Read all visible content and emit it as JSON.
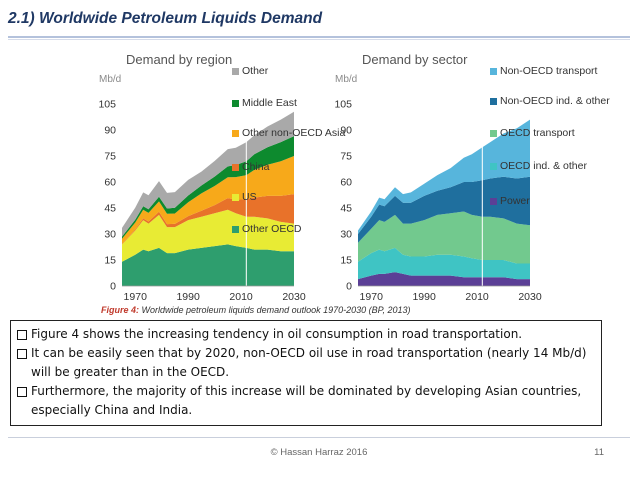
{
  "slide": {
    "title": "2.1) Worldwide Petroleum Liquids Demand",
    "figure_label": "Figure 4:",
    "figure_caption": "Worldwide petroleum liquids demand outlook 1970-2030 (BP, 2013)",
    "bullets": [
      "Figure 4 shows the increasing tendency in oil consumption in road transportation.",
      "It can be easily seen that by 2020, non-OECD oil use in road transportation (nearly 14 Mb/d) will be greater than in the OECD.",
      "Furthermore, the majority of this increase will be dominated by developing Asian countries, especially China and India."
    ],
    "footer": "©  Hassan Harraz  2016",
    "page_number": "11"
  },
  "chart_data": [
    {
      "type": "area",
      "stacked": true,
      "title": "Demand by region",
      "ylabel": "Mb/d",
      "ylim": [
        0,
        105
      ],
      "yticks": [
        0,
        15,
        30,
        45,
        60,
        75,
        90,
        105
      ],
      "xticks": [
        1970,
        1990,
        2010,
        2030
      ],
      "xlim": [
        1965,
        2030
      ],
      "divider_year": 2012,
      "x": [
        1965,
        1970,
        1973,
        1975,
        1979,
        1982,
        1985,
        1990,
        1995,
        2000,
        2005,
        2008,
        2012,
        2015,
        2020,
        2025,
        2030
      ],
      "series": [
        {
          "name": "Other OECD",
          "color": "#2e9e6e",
          "values": [
            14,
            18,
            21,
            20,
            22,
            19,
            19,
            21,
            22,
            23,
            24,
            23,
            22,
            21,
            21,
            20,
            20
          ]
        },
        {
          "name": "US",
          "color": "#e8eb34",
          "values": [
            10,
            14,
            17,
            16,
            19,
            15,
            15,
            17,
            18,
            19,
            20,
            19,
            18,
            19,
            18,
            17,
            16
          ]
        },
        {
          "name": "China",
          "color": "#e8722a",
          "values": [
            0.3,
            0.6,
            1,
            1.2,
            1.8,
            1.7,
            1.8,
            2.3,
            3.4,
            4.7,
            6.7,
            7.8,
            10,
            11,
            13,
            15,
            17
          ]
        },
        {
          "name": "Other non-OECD Asia",
          "color": "#f7a91a",
          "values": [
            3,
            4,
            5,
            5,
            6,
            6,
            6,
            8,
            10,
            11,
            12,
            13,
            14,
            16,
            18,
            20,
            22
          ]
        },
        {
          "name": "Middle East",
          "color": "#0d8a2e",
          "values": [
            1.2,
            1.6,
            2,
            2.1,
            2.7,
            3,
            3.4,
            3.9,
            4.6,
            5.4,
            6.3,
            7,
            8,
            9,
            10,
            11,
            11.5
          ]
        },
        {
          "name": "Other",
          "color": "#a9a9a9",
          "values": [
            5,
            7,
            8,
            8,
            9,
            9,
            9,
            9,
            8,
            9,
            10,
            10,
            11,
            11,
            12,
            13,
            14
          ]
        }
      ],
      "legend_position": "right",
      "grid": false
    },
    {
      "type": "area",
      "stacked": true,
      "title": "Demand by sector",
      "ylabel": "Mb/d",
      "ylim": [
        0,
        105
      ],
      "yticks": [
        0,
        15,
        30,
        45,
        60,
        75,
        90,
        105
      ],
      "xticks": [
        1970,
        1990,
        2010,
        2030
      ],
      "xlim": [
        1965,
        2030
      ],
      "divider_year": 2012,
      "x": [
        1965,
        1970,
        1973,
        1975,
        1979,
        1982,
        1985,
        1990,
        1995,
        2000,
        2005,
        2008,
        2012,
        2015,
        2020,
        2025,
        2030
      ],
      "series": [
        {
          "name": "Power",
          "color": "#5b3f96",
          "values": [
            4,
            6,
            7,
            7,
            8,
            7,
            6,
            6,
            6,
            6,
            5,
            5,
            5,
            5,
            5,
            4,
            4
          ]
        },
        {
          "name": "OECD ind. & other",
          "color": "#3fc4c4",
          "values": [
            10,
            13,
            14,
            13,
            14,
            11,
            11,
            11,
            12,
            12,
            12,
            11,
            10,
            10,
            10,
            9,
            9
          ]
        },
        {
          "name": "OECD transport",
          "color": "#72c98e",
          "values": [
            11,
            14,
            17,
            17,
            19,
            18,
            19,
            21,
            23,
            24,
            26,
            25,
            25,
            25,
            24,
            23,
            22
          ]
        },
        {
          "name": "Non-OECD ind. & other",
          "color": "#1f6f9e",
          "values": [
            5,
            7,
            9,
            9,
            11,
            12,
            12,
            14,
            14,
            15,
            17,
            19,
            21,
            22,
            24,
            26,
            28
          ]
        },
        {
          "name": "Non-OECD transport",
          "color": "#57b5dc",
          "values": [
            2,
            3,
            4,
            4,
            5,
            5,
            6,
            7,
            9,
            11,
            14,
            16,
            19,
            21,
            25,
            29,
            33
          ]
        }
      ],
      "legend_position": "right",
      "grid": false
    }
  ]
}
